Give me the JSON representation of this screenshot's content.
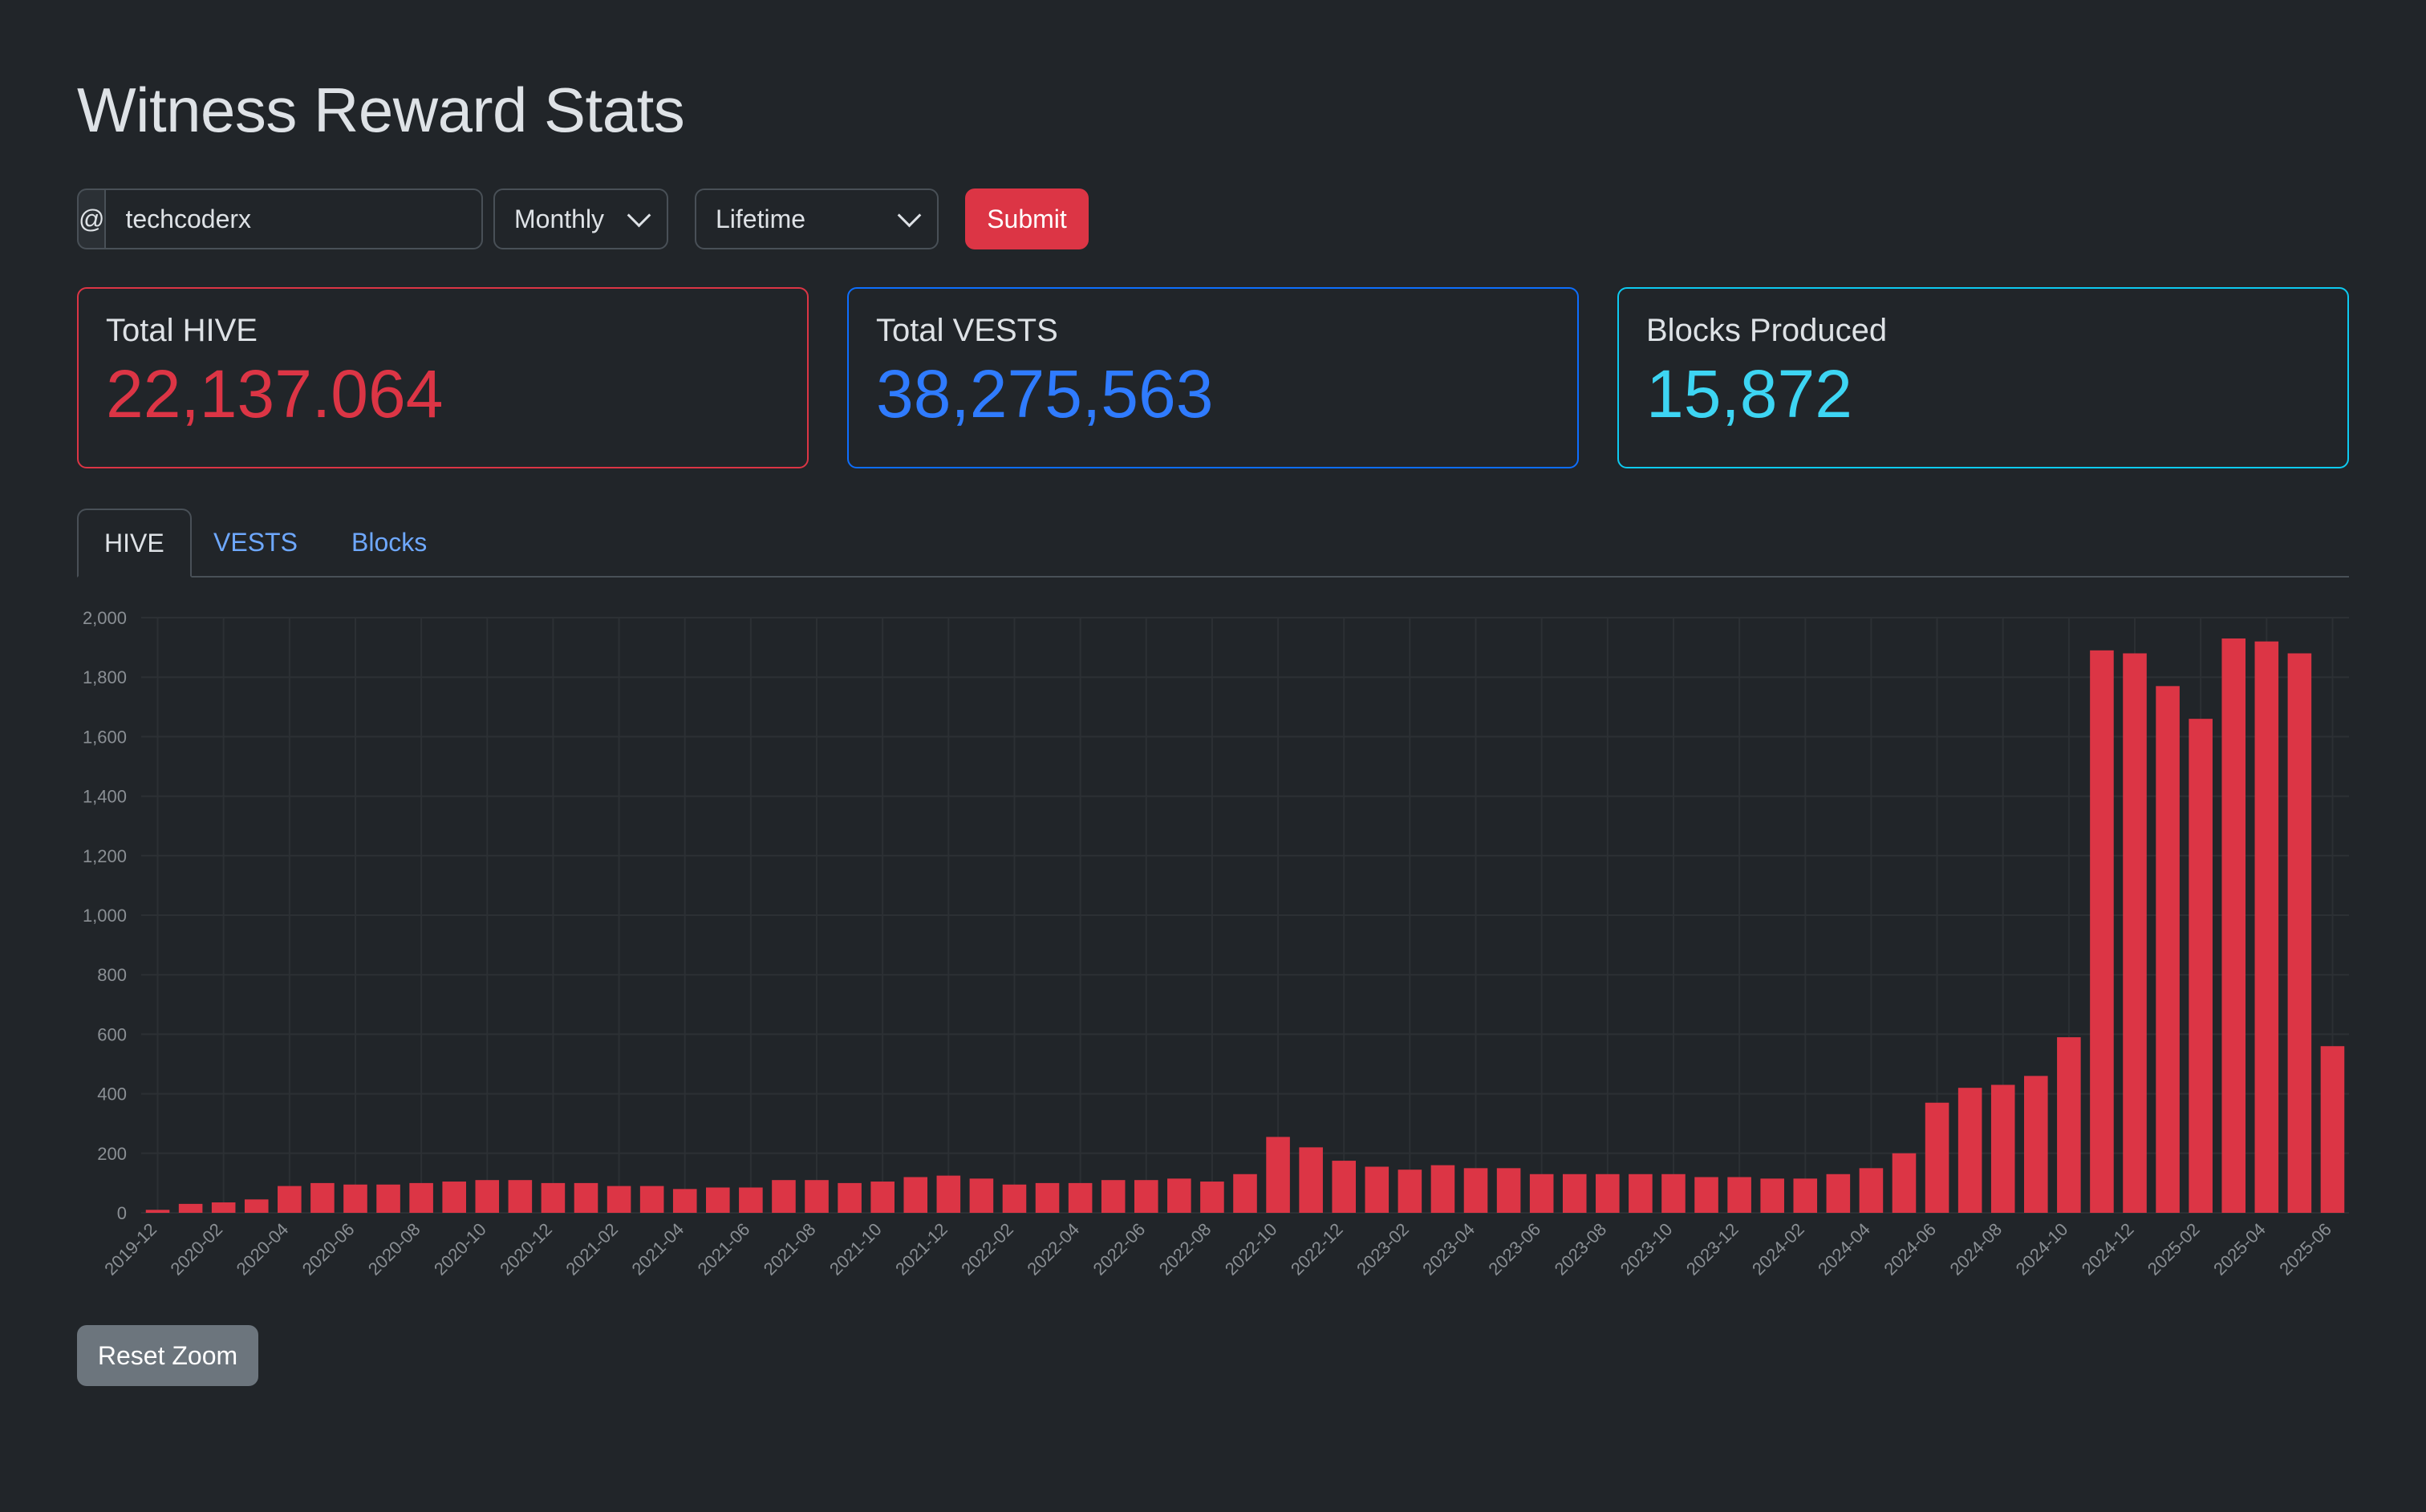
{
  "page": {
    "title": "Witness Reward Stats"
  },
  "form": {
    "prefix": "@",
    "username": "techcoderx",
    "period": "Monthly",
    "range": "Lifetime",
    "submit_label": "Submit"
  },
  "cards": {
    "hive": {
      "label": "Total HIVE",
      "value": "22,137.064"
    },
    "vests": {
      "label": "Total VESTS",
      "value": "38,275,563"
    },
    "blocks": {
      "label": "Blocks Produced",
      "value": "15,872"
    }
  },
  "tabs": [
    {
      "label": "HIVE",
      "active": true
    },
    {
      "label": "VESTS",
      "active": false
    },
    {
      "label": "Blocks",
      "active": false
    }
  ],
  "reset_label": "Reset Zoom",
  "colors": {
    "bar": "#dc3545",
    "background": "#212529",
    "grid": "#2c3034"
  },
  "chart_data": {
    "type": "bar",
    "title": "",
    "xlabel": "",
    "ylabel": "",
    "ylim": [
      0,
      2000
    ],
    "yticks": [
      0,
      200,
      400,
      600,
      800,
      1000,
      1200,
      1400,
      1600,
      1800,
      2000
    ],
    "grid": true,
    "categories": [
      "2019-12",
      "2020-01",
      "2020-02",
      "2020-03",
      "2020-04",
      "2020-05",
      "2020-06",
      "2020-07",
      "2020-08",
      "2020-09",
      "2020-10",
      "2020-11",
      "2020-12",
      "2021-01",
      "2021-02",
      "2021-03",
      "2021-04",
      "2021-05",
      "2021-06",
      "2021-07",
      "2021-08",
      "2021-09",
      "2021-10",
      "2021-11",
      "2021-12",
      "2022-01",
      "2022-02",
      "2022-03",
      "2022-04",
      "2022-05",
      "2022-06",
      "2022-07",
      "2022-08",
      "2022-09",
      "2022-10",
      "2022-11",
      "2022-12",
      "2023-01",
      "2023-02",
      "2023-03",
      "2023-04",
      "2023-05",
      "2023-06",
      "2023-07",
      "2023-08",
      "2023-09",
      "2023-10",
      "2023-11",
      "2023-12",
      "2024-01",
      "2024-02",
      "2024-03",
      "2024-04",
      "2024-05",
      "2024-06",
      "2024-07",
      "2024-08",
      "2024-09",
      "2024-10",
      "2024-11",
      "2024-12",
      "2025-01",
      "2025-02",
      "2025-03",
      "2025-04",
      "2025-05",
      "2025-06"
    ],
    "values": [
      10,
      30,
      35,
      45,
      90,
      100,
      95,
      95,
      100,
      105,
      110,
      110,
      100,
      100,
      90,
      90,
      80,
      85,
      85,
      110,
      110,
      100,
      105,
      120,
      125,
      115,
      95,
      100,
      100,
      110,
      110,
      115,
      105,
      130,
      255,
      220,
      175,
      155,
      145,
      160,
      150,
      150,
      130,
      130,
      130,
      130,
      130,
      120,
      120,
      115,
      115,
      130,
      150,
      200,
      370,
      420,
      430,
      460,
      590,
      1890,
      1880,
      1770,
      1660,
      1930,
      1920,
      1880,
      560
    ],
    "tick_labels": [
      "2019-12",
      "2020-02",
      "2020-04",
      "2020-06",
      "2020-08",
      "2020-10",
      "2020-12",
      "2021-02",
      "2021-04",
      "2021-06",
      "2021-08",
      "2021-10",
      "2021-12",
      "2022-02",
      "2022-04",
      "2022-06",
      "2022-08",
      "2022-10",
      "2022-12",
      "2023-02",
      "2023-04",
      "2023-06",
      "2023-08",
      "2023-10",
      "2023-12",
      "2024-02",
      "2024-04",
      "2024-06",
      "2024-08",
      "2024-10",
      "2024-12",
      "2025-02",
      "2025-04",
      "2025-06"
    ]
  }
}
